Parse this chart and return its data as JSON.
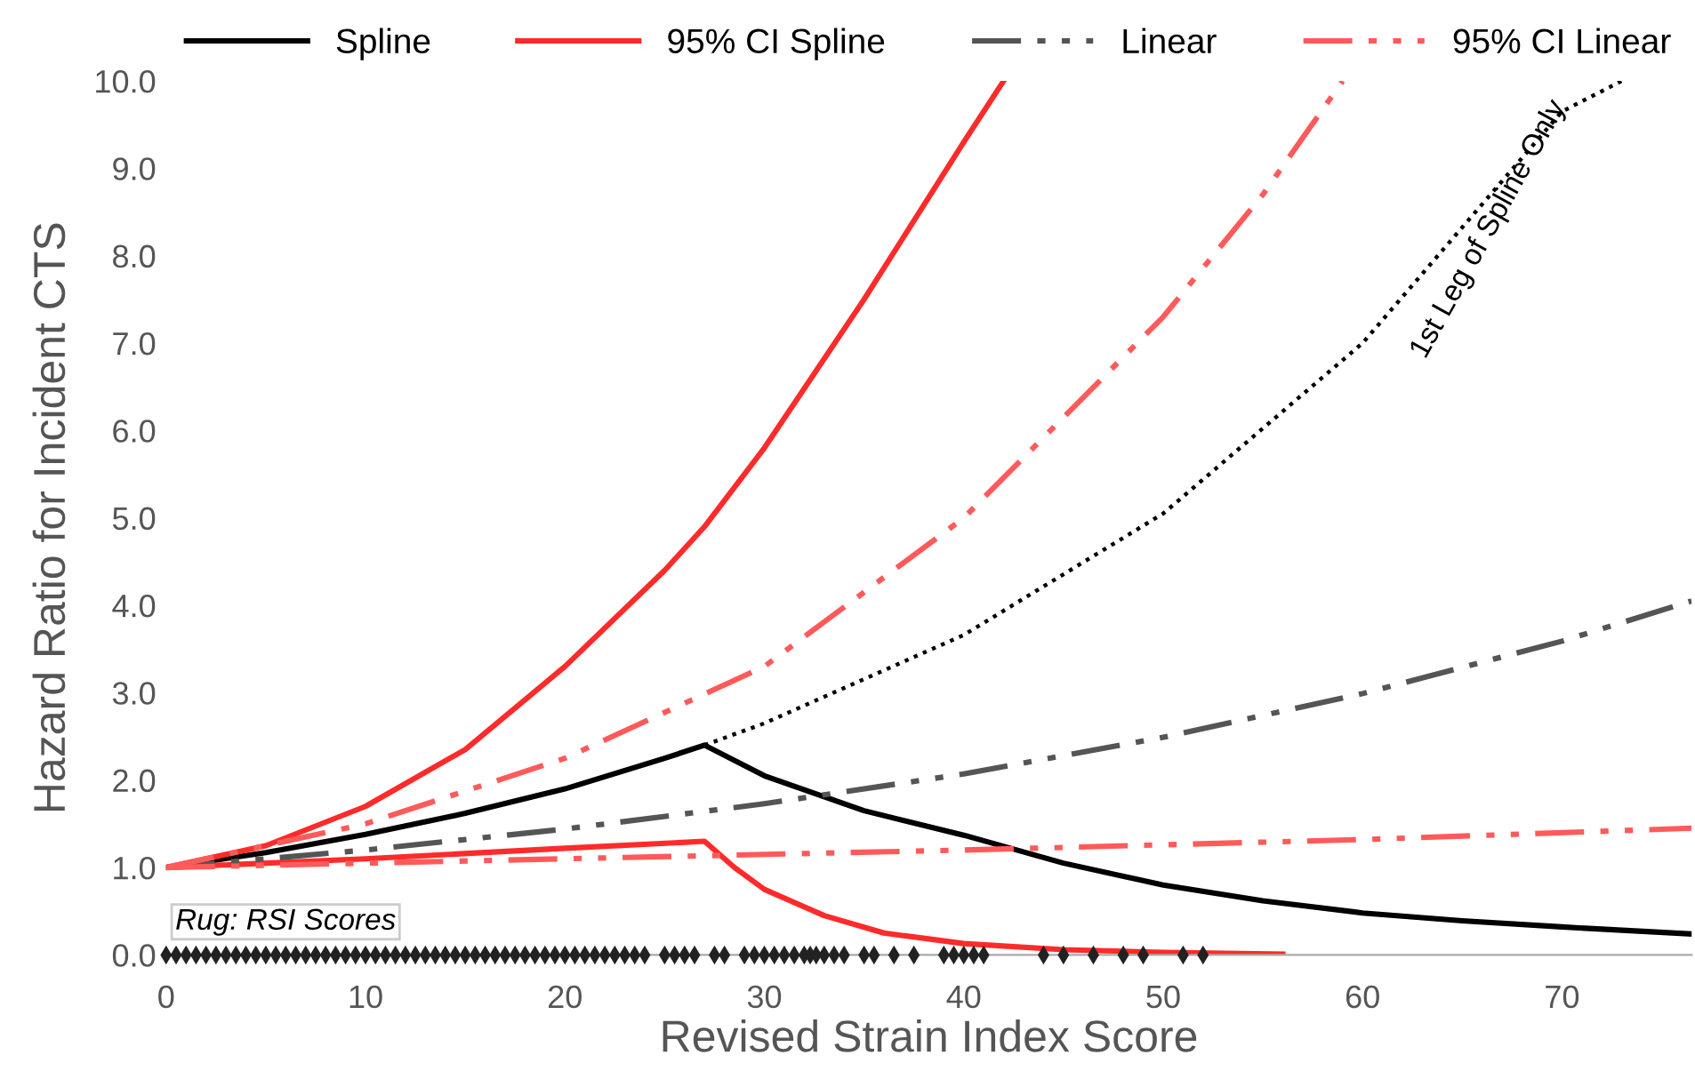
{
  "chart_data": {
    "type": "line",
    "xlabel": "Revised Strain Index Score",
    "ylabel": "Hazard Ratio for Incident CTS",
    "xlim": [
      0,
      76.5
    ],
    "ylim": [
      0,
      10
    ],
    "xticks": [
      0,
      10,
      20,
      30,
      40,
      50,
      60,
      70
    ],
    "yticks": [
      {
        "value": 0,
        "label": "0.0"
      },
      {
        "value": 1,
        "label": "1.0"
      },
      {
        "value": 2,
        "label": "2.0"
      },
      {
        "value": 3,
        "label": "3.0"
      },
      {
        "value": 4,
        "label": "4.0"
      },
      {
        "value": 5,
        "label": "5.0"
      },
      {
        "value": 6,
        "label": "6.0"
      },
      {
        "value": 7,
        "label": "7.0"
      },
      {
        "value": 8,
        "label": "8.0"
      },
      {
        "value": 9,
        "label": "9.0"
      },
      {
        "value": 10,
        "label": "10.0"
      }
    ],
    "grid": false,
    "legend": "top",
    "marker": "none",
    "annotations": [
      "1st Leg of Spline Only",
      "Rug: RSI Scores"
    ],
    "series": [
      {
        "name": "Spline",
        "color": "#000000",
        "line_style": "solid",
        "x": [
          0,
          5,
          10,
          15,
          20,
          25,
          27,
          30,
          35,
          40,
          45,
          50,
          55,
          60,
          65,
          70,
          76.5
        ],
        "values": [
          1,
          1.17,
          1.38,
          1.62,
          1.9,
          2.25,
          2.4,
          2.05,
          1.65,
          1.37,
          1.05,
          0.8,
          0.62,
          0.48,
          0.39,
          0.32,
          0.24
        ]
      },
      {
        "name": "95% CI Spline",
        "color": "#ff2a2a",
        "line_style": "solid",
        "x": [
          0,
          5,
          10,
          15,
          20,
          25,
          27,
          30,
          35,
          40,
          42
        ],
        "values": [
          1,
          1.25,
          1.7,
          2.35,
          3.3,
          4.4,
          4.9,
          5.8,
          7.5,
          9.3,
          10
        ]
      },
      {
        "color": "#ff2a2a",
        "line_style": "solid",
        "x": [
          0,
          10,
          20,
          27,
          28.5,
          30,
          33,
          36,
          40,
          45,
          50,
          56
        ],
        "values": [
          1,
          1.1,
          1.22,
          1.3,
          1.0,
          0.75,
          0.45,
          0.25,
          0.13,
          0.06,
          0.03,
          0.01
        ]
      },
      {
        "name": "Linear",
        "color": "#555555",
        "line_style": "dashdot",
        "x": [
          0,
          10,
          20,
          30,
          40,
          50,
          60,
          70,
          76.5
        ],
        "values": [
          1,
          1.2,
          1.44,
          1.73,
          2.07,
          2.49,
          2.99,
          3.59,
          4.05
        ]
      },
      {
        "name": "95% CI Linear",
        "color": "#ff5a5a",
        "line_style": "dashdot",
        "x": [
          0,
          10,
          20,
          30,
          40,
          50,
          55,
          59
        ],
        "values": [
          1,
          1.5,
          2.25,
          3.3,
          5.0,
          7.3,
          8.7,
          10
        ]
      },
      {
        "color": "#ff5a5a",
        "line_style": "dashdot",
        "x": [
          0,
          20,
          40,
          60,
          76.5
        ],
        "values": [
          1,
          1.1,
          1.2,
          1.32,
          1.45
        ]
      },
      {
        "color": "#000000",
        "line_style": "dotted",
        "x": [
          27,
          30,
          40,
          50,
          60,
          70,
          73
        ],
        "values": [
          2.4,
          2.65,
          3.66,
          5.05,
          7.0,
          9.65,
          10
        ]
      },
      {
        "type": "scatter",
        "marker": "diamond",
        "color": "#222222",
        "x": [
          0,
          0.5,
          1,
          1.5,
          2,
          2.5,
          3,
          3.5,
          4,
          4.5,
          5,
          5.5,
          6,
          6.5,
          7,
          7.5,
          8,
          8.5,
          9,
          9.5,
          10,
          10.5,
          11,
          11.5,
          12,
          12.5,
          13,
          13.5,
          14,
          14.5,
          15,
          15.5,
          16,
          16.5,
          17,
          17.5,
          18,
          18.5,
          19,
          19.5,
          20,
          20.5,
          21,
          21.5,
          22,
          22.5,
          23,
          23.5,
          24,
          25,
          25.5,
          26,
          26.5,
          27.5,
          28,
          29,
          29.5,
          30,
          30.5,
          31,
          31.5,
          32,
          32.3,
          32.6,
          33,
          33.5,
          34,
          35,
          35.5,
          36.5,
          37.5,
          39,
          39.5,
          40,
          40.5,
          41,
          44,
          45,
          46.5,
          48,
          49,
          51,
          52
        ],
        "values": [
          0,
          0,
          0,
          0,
          0,
          0,
          0,
          0,
          0,
          0,
          0,
          0,
          0,
          0,
          0,
          0,
          0,
          0,
          0,
          0,
          0,
          0,
          0,
          0,
          0,
          0,
          0,
          0,
          0,
          0,
          0,
          0,
          0,
          0,
          0,
          0,
          0,
          0,
          0,
          0,
          0,
          0,
          0,
          0,
          0,
          0,
          0,
          0,
          0,
          0,
          0,
          0,
          0,
          0,
          0,
          0,
          0,
          0,
          0,
          0,
          0,
          0,
          0,
          0,
          0,
          0,
          0,
          0,
          0,
          0,
          0,
          0,
          0,
          0,
          0,
          0,
          0,
          0,
          0,
          0,
          0,
          0,
          0
        ]
      }
    ]
  }
}
